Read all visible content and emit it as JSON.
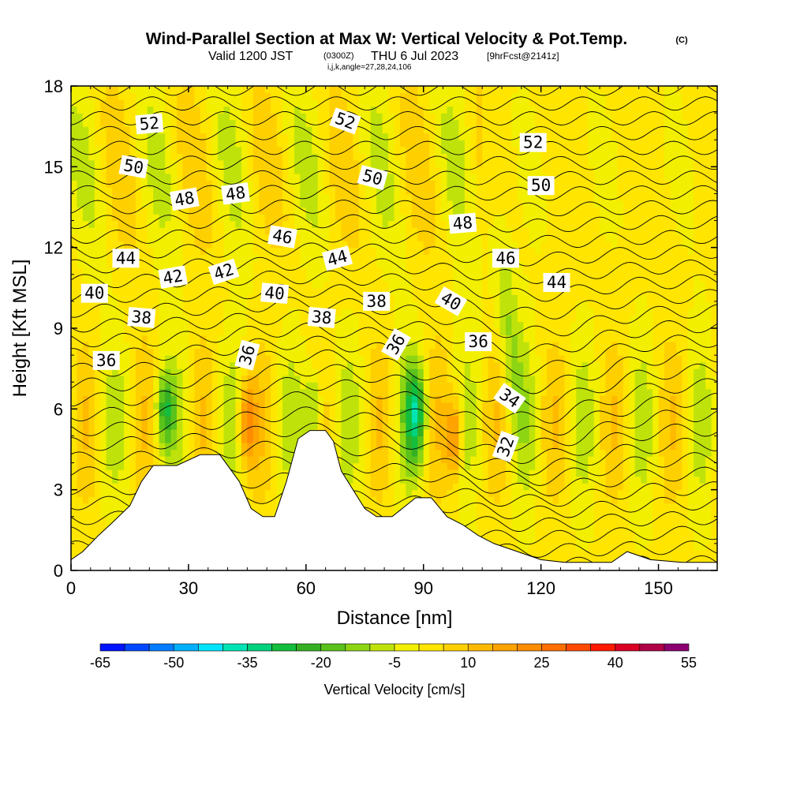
{
  "chart_data": {
    "type": "heatmap",
    "title": "Wind-Parallel Section at Max W: Vertical Velocity & Pot.Temp.",
    "title_mark": "(C)",
    "subtitle_valid": "Valid 1200 JST",
    "subtitle_utc": "(0300Z)",
    "subtitle_date": "THU 6 Jul 2023",
    "subtitle_fcst": "[9hrFcst@2141z]",
    "subtitle_indices": "i,j,k,angle=27,28,24,106",
    "xlabel": "Distance [nm]",
    "ylabel": "Height [Kft MSL]",
    "xlim": [
      0,
      165
    ],
    "ylim": [
      0,
      18
    ],
    "xticks": [
      "0",
      "30",
      "60",
      "90",
      "120",
      "150"
    ],
    "yticks": [
      "0",
      "3",
      "6",
      "9",
      "12",
      "15",
      "18"
    ],
    "colorbar": {
      "label": "Vertical Velocity [cm/s]",
      "tick_labels": [
        "-65",
        "-50",
        "-35",
        "-20",
        "-5",
        "10",
        "25",
        "40",
        "55"
      ],
      "min": -65,
      "max": 55,
      "step": 5,
      "colors": [
        "#0014ff",
        "#0048ff",
        "#007cff",
        "#00b0ff",
        "#00e4ff",
        "#00e4b4",
        "#00d27d",
        "#13be3c",
        "#35b023",
        "#5ac21b",
        "#8dd513",
        "#bfe30a",
        "#f2ef00",
        "#ffe500",
        "#ffd000",
        "#ffba00",
        "#ffa300",
        "#ff8b00",
        "#ff6f00",
        "#ff4b00",
        "#ff1a00",
        "#d90024",
        "#b00048",
        "#8c0070"
      ]
    },
    "terrain_kft": [
      [
        0,
        0.4
      ],
      [
        3,
        0.7
      ],
      [
        7,
        1.3
      ],
      [
        10,
        1.7
      ],
      [
        15,
        2.4
      ],
      [
        18,
        3.3
      ],
      [
        21,
        3.9
      ],
      [
        27,
        3.9
      ],
      [
        33,
        4.3
      ],
      [
        38,
        4.3
      ],
      [
        43,
        3.3
      ],
      [
        46,
        2.3
      ],
      [
        49,
        2.0
      ],
      [
        52,
        2.0
      ],
      [
        55,
        3.3
      ],
      [
        58,
        4.9
      ],
      [
        61,
        5.2
      ],
      [
        65,
        5.2
      ],
      [
        67,
        4.8
      ],
      [
        69,
        3.7
      ],
      [
        72,
        3.0
      ],
      [
        75,
        2.3
      ],
      [
        78,
        2.0
      ],
      [
        82,
        2.0
      ],
      [
        88,
        2.7
      ],
      [
        92,
        2.7
      ],
      [
        96,
        2.0
      ],
      [
        100,
        1.7
      ],
      [
        104,
        1.3
      ],
      [
        108,
        1.0
      ],
      [
        114,
        0.7
      ],
      [
        120,
        0.4
      ],
      [
        126,
        0.3
      ],
      [
        138,
        0.3
      ],
      [
        142,
        0.7
      ],
      [
        148,
        0.4
      ],
      [
        156,
        0.3
      ],
      [
        165,
        0.3
      ]
    ],
    "theta_labels": [
      {
        "text": "52",
        "x": 20,
        "y": 16.6,
        "rot": -5
      },
      {
        "text": "52",
        "x": 70,
        "y": 16.7,
        "rot": 20
      },
      {
        "text": "52",
        "x": 118,
        "y": 15.9,
        "rot": 0
      },
      {
        "text": "50",
        "x": 16,
        "y": 15.0,
        "rot": 10
      },
      {
        "text": "50",
        "x": 77,
        "y": 14.6,
        "rot": 15
      },
      {
        "text": "50",
        "x": 120,
        "y": 14.3,
        "rot": 0
      },
      {
        "text": "48",
        "x": 29,
        "y": 13.8,
        "rot": -10
      },
      {
        "text": "48",
        "x": 42,
        "y": 14.0,
        "rot": -8
      },
      {
        "text": "48",
        "x": 100,
        "y": 12.9,
        "rot": -5
      },
      {
        "text": "46",
        "x": 54,
        "y": 12.4,
        "rot": 10
      },
      {
        "text": "46",
        "x": 111,
        "y": 11.6,
        "rot": 0
      },
      {
        "text": "44",
        "x": 14,
        "y": 11.6,
        "rot": 0
      },
      {
        "text": "44",
        "x": 68,
        "y": 11.6,
        "rot": -15
      },
      {
        "text": "44",
        "x": 124,
        "y": 10.7,
        "rot": 0
      },
      {
        "text": "42",
        "x": 26,
        "y": 10.9,
        "rot": -10
      },
      {
        "text": "42",
        "x": 39,
        "y": 11.1,
        "rot": -18
      },
      {
        "text": "40",
        "x": 6,
        "y": 10.3,
        "rot": 0
      },
      {
        "text": "40",
        "x": 52,
        "y": 10.3,
        "rot": 5
      },
      {
        "text": "40",
        "x": 97,
        "y": 10.0,
        "rot": 30
      },
      {
        "text": "38",
        "x": 18,
        "y": 9.4,
        "rot": 5
      },
      {
        "text": "38",
        "x": 64,
        "y": 9.4,
        "rot": 5
      },
      {
        "text": "38",
        "x": 78,
        "y": 10.0,
        "rot": 0
      },
      {
        "text": "36",
        "x": 9,
        "y": 7.8,
        "rot": 0
      },
      {
        "text": "36",
        "x": 45,
        "y": 8.0,
        "rot": -75
      },
      {
        "text": "36",
        "x": 83,
        "y": 8.4,
        "rot": -60
      },
      {
        "text": "36",
        "x": 104,
        "y": 8.5,
        "rot": 0
      },
      {
        "text": "34",
        "x": 112,
        "y": 6.4,
        "rot": 35
      },
      {
        "text": "32",
        "x": 111,
        "y": 4.6,
        "rot": -70
      }
    ]
  }
}
